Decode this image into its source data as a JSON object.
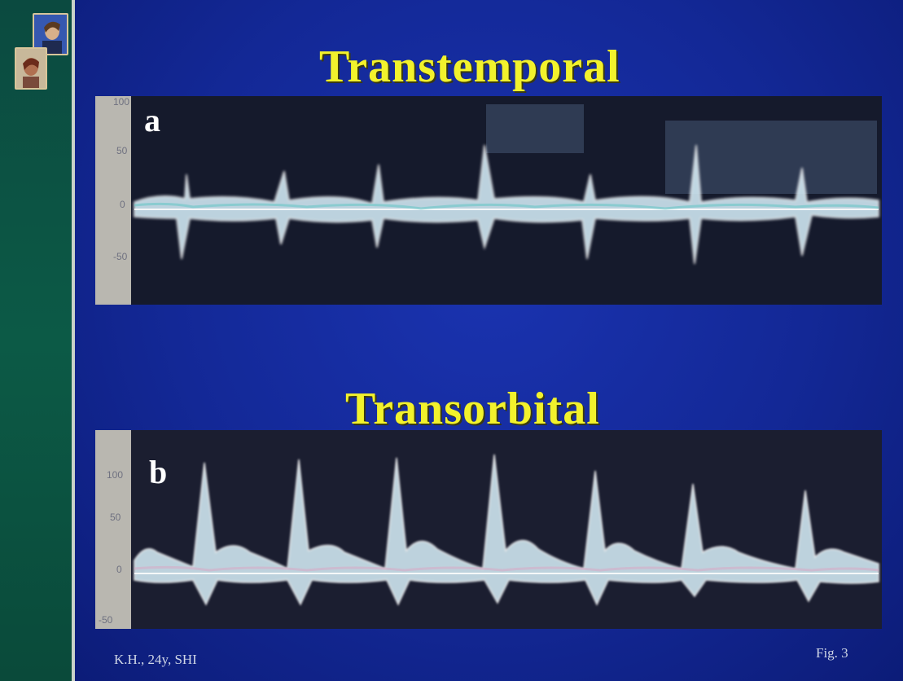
{
  "slide": {
    "title_top": "Transtemporal",
    "title_bottom": "Transorbital",
    "caption_left": "K.H., 24y, SHI",
    "caption_right": "Fig. 3"
  },
  "panels": {
    "a": {
      "label": "a",
      "ticks": [
        "100",
        "50",
        "0",
        "-50"
      ]
    },
    "b": {
      "label": "b",
      "ticks": [
        "100",
        "50",
        "0",
        "-50"
      ]
    }
  },
  "colors": {
    "background": "#132896",
    "sidebar": "#0b4a40",
    "title": "#f2f22c",
    "waveform": "#d9eef7"
  }
}
